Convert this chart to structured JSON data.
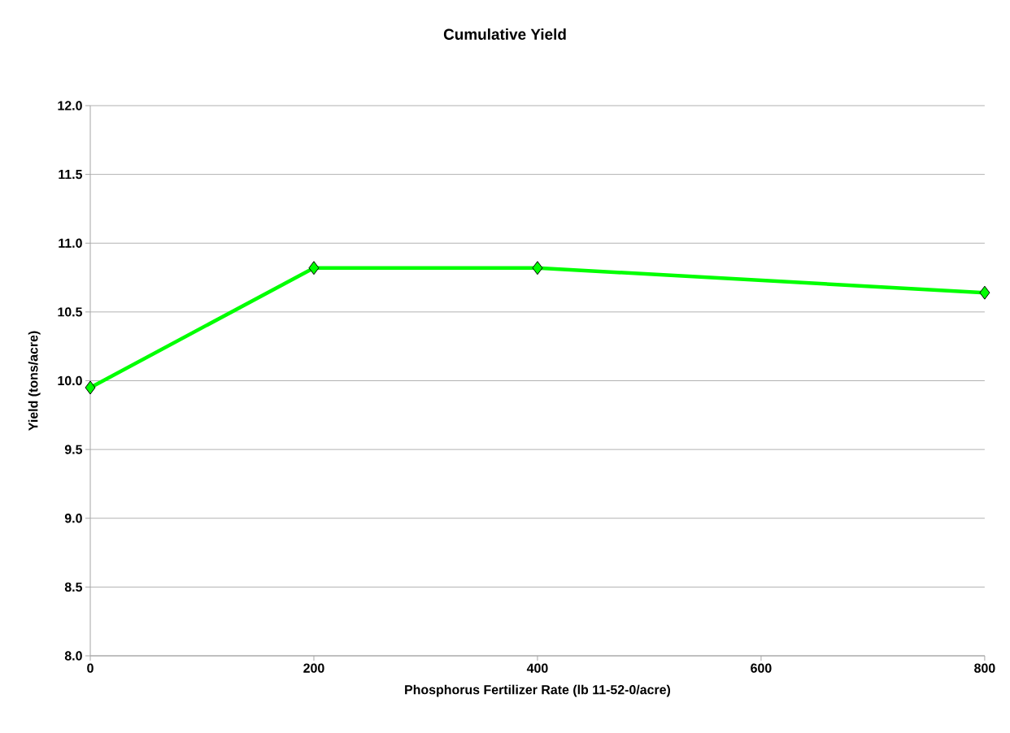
{
  "chart_data": {
    "type": "line",
    "title": "Cumulative Yield",
    "xlabel": "Phosphorus Fertilizer Rate (lb 11-52-0/acre)",
    "ylabel": "Yield (tons/acre)",
    "x": [
      0,
      200,
      400,
      800
    ],
    "series": [
      {
        "color": "#00ff00",
        "values": [
          9.95,
          10.82,
          10.82,
          10.64
        ]
      }
    ],
    "xlim": [
      0,
      800
    ],
    "xticks": [
      0,
      200,
      400,
      600,
      800
    ],
    "ylim": [
      8.0,
      12.0
    ],
    "yticks": [
      {
        "value": 8.0,
        "label": "8.0"
      },
      {
        "value": 8.5,
        "label": "8.5"
      },
      {
        "value": 9.0,
        "label": "9.0"
      },
      {
        "value": 9.5,
        "label": "9.5"
      },
      {
        "value": 10.0,
        "label": "10.0"
      },
      {
        "value": 10.5,
        "label": "10.5"
      },
      {
        "value": 11.0,
        "label": "11.0"
      },
      {
        "value": 11.5,
        "label": "11.5"
      },
      {
        "value": 12.0,
        "label": "12.0"
      }
    ],
    "grid": "y",
    "marker": "diamond",
    "line_style": "solid"
  }
}
